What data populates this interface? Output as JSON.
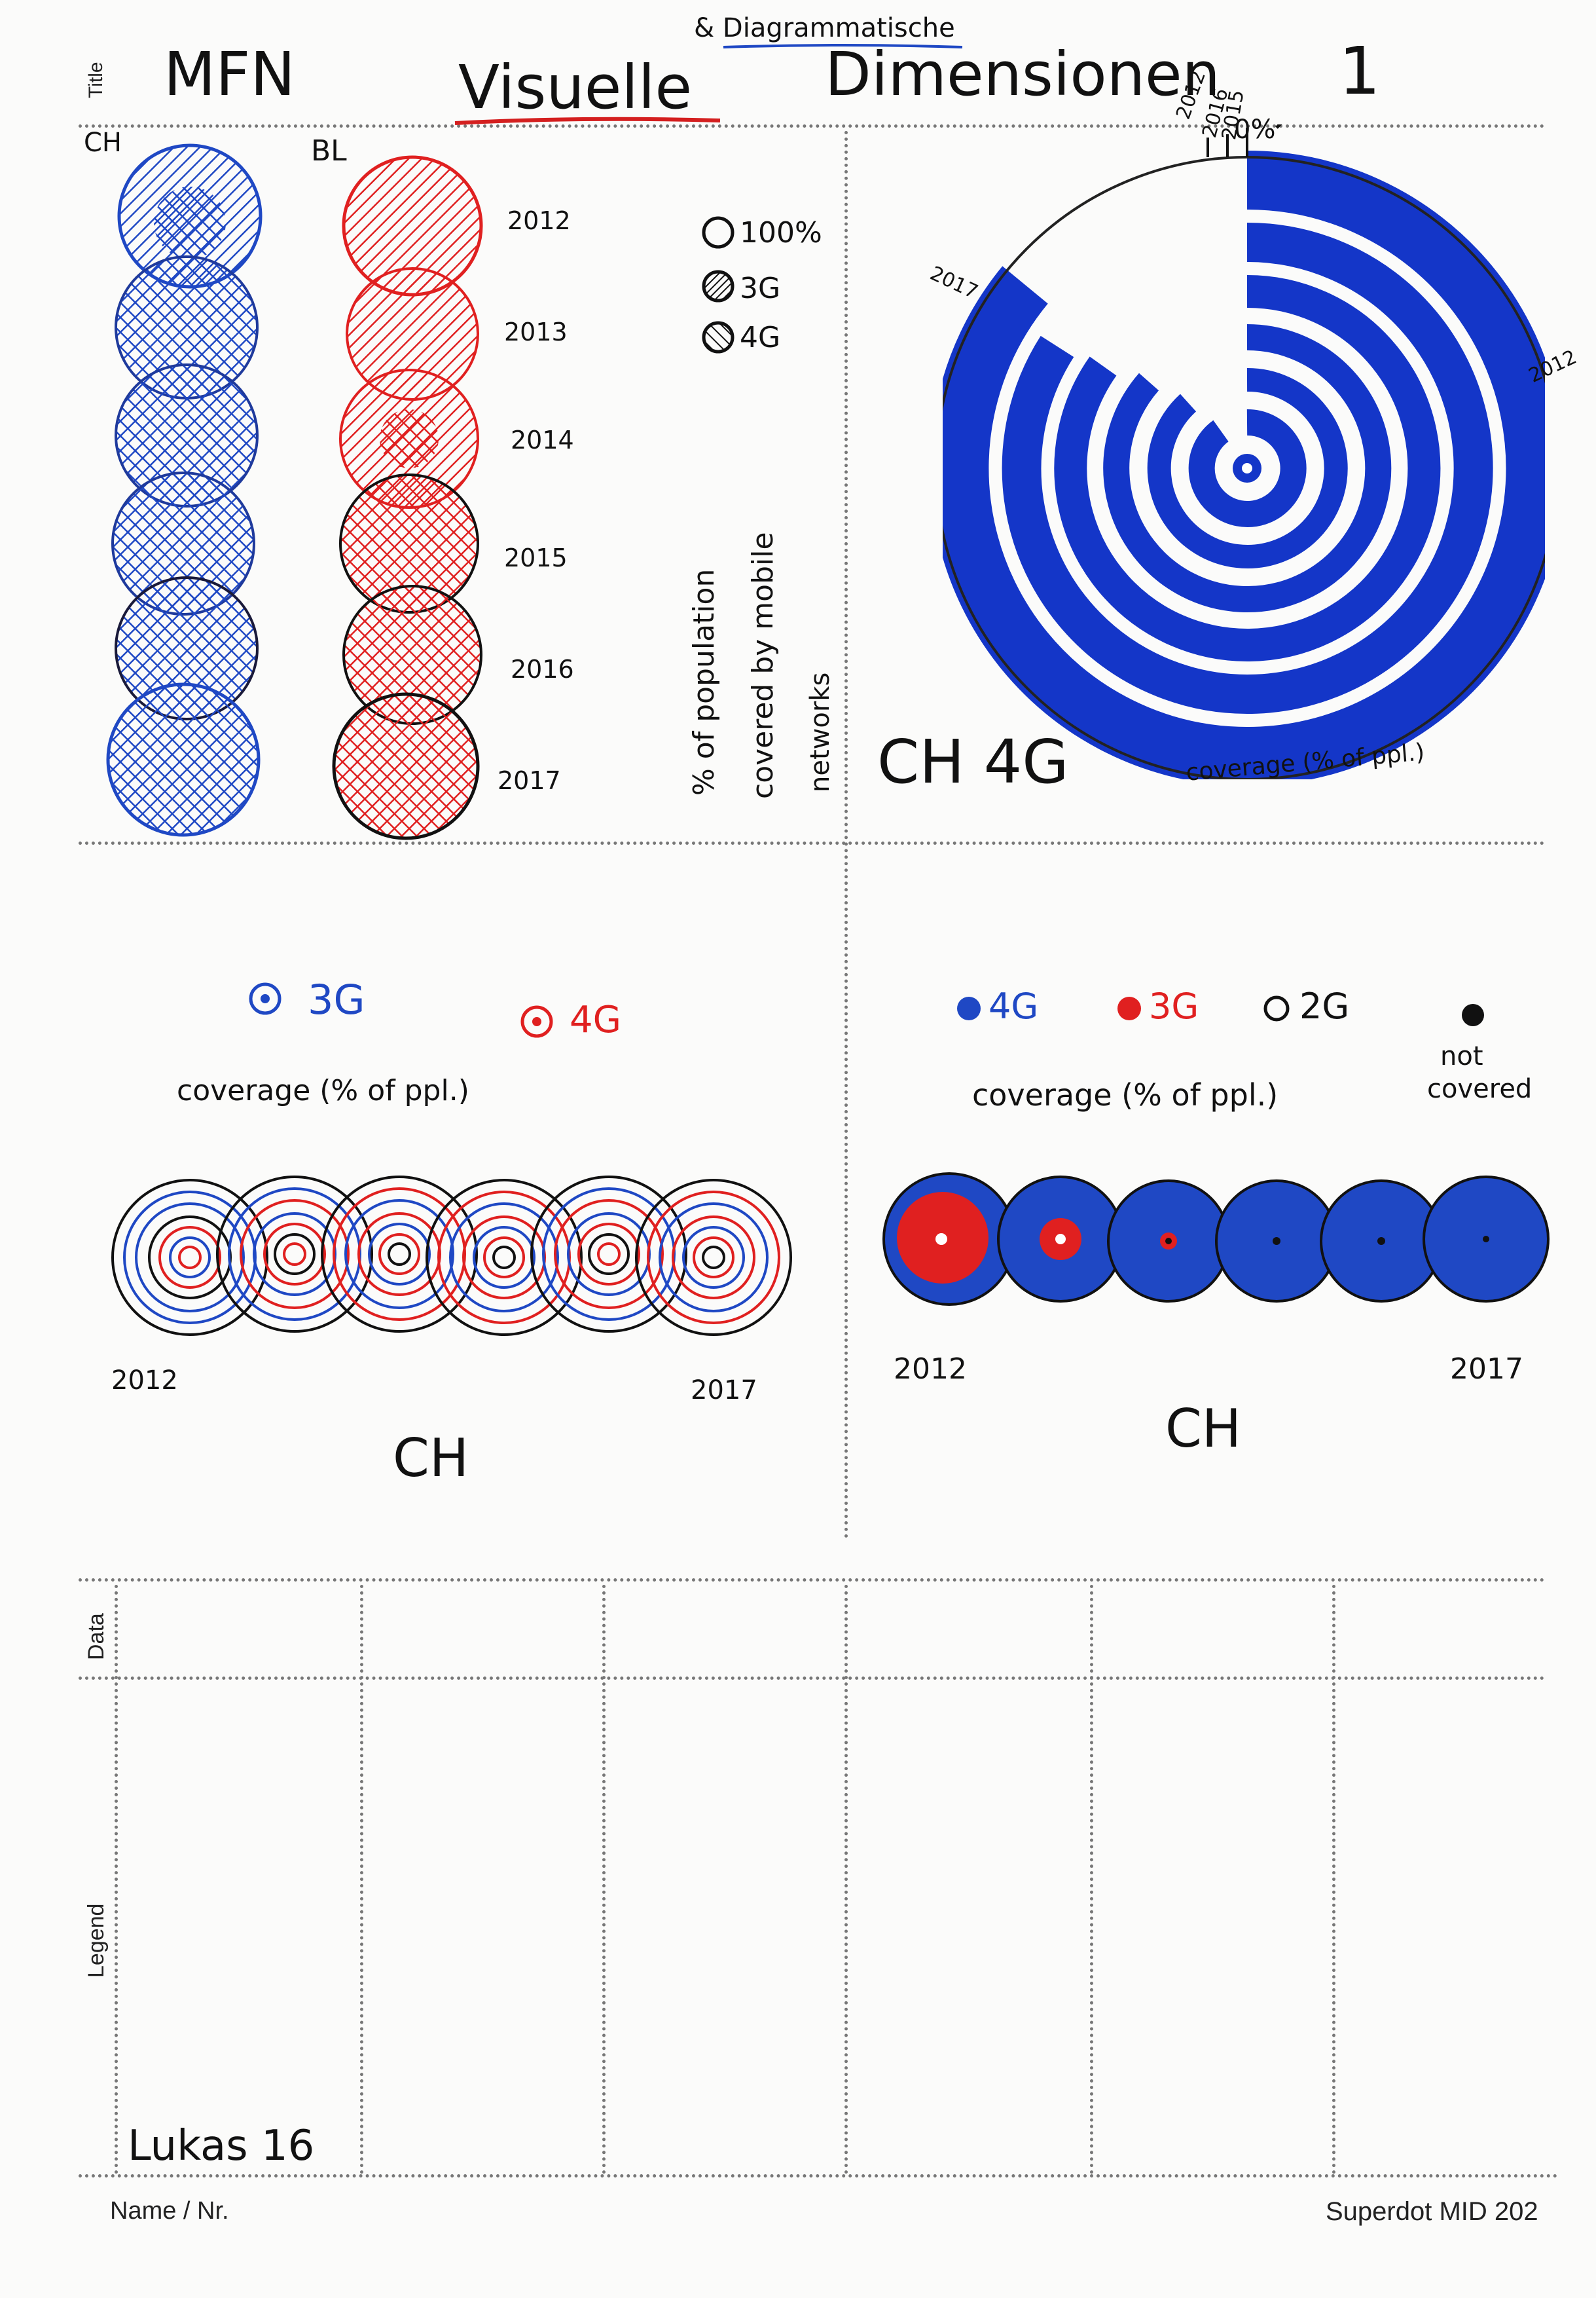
{
  "form": {
    "title_label": "Title",
    "data_label": "Data",
    "legend_label": "Legend",
    "name_label": "Name / Nr.",
    "brand": "Superdot MID 202"
  },
  "header": {
    "word1": "MFN",
    "word2": "Visuelle",
    "insert": "& Diagrammatische",
    "word3": "Dimensionen",
    "page_no": "1"
  },
  "sketch1": {
    "col1_label": "CH",
    "col2_label": "BL",
    "years": [
      "2012",
      "2013",
      "2014",
      "2015",
      "2016",
      "2017"
    ],
    "legend": [
      "100%",
      "3G",
      "4G"
    ],
    "axis_caption_lines": [
      "% of population",
      "covered by mobile",
      "networks"
    ],
    "colors": {
      "ch": "#1f48c4",
      "bl": "#e02020"
    }
  },
  "sketch2": {
    "top_labels": [
      "2012",
      "2016",
      "2015",
      "0%"
    ],
    "side_label_left": "2017",
    "side_label_right": "2012",
    "caption": "CH 4G",
    "subcaption": "coverage (% of ppl.)",
    "color": "#1436c8"
  },
  "sketch3": {
    "legend_3g": "3G",
    "legend_4g": "4G",
    "subtitle": "coverage (% of ppl.)",
    "start_year": "2012",
    "end_year": "2017",
    "caption": "CH"
  },
  "sketch4": {
    "legend": [
      "4G",
      "3G",
      "2G"
    ],
    "not_covered_lines": [
      "not",
      "covered"
    ],
    "subtitle": "coverage (% of ppl.)",
    "start_year": "2012",
    "end_year": "2017",
    "caption": "CH"
  },
  "footer": {
    "author": "Lukas 16"
  }
}
